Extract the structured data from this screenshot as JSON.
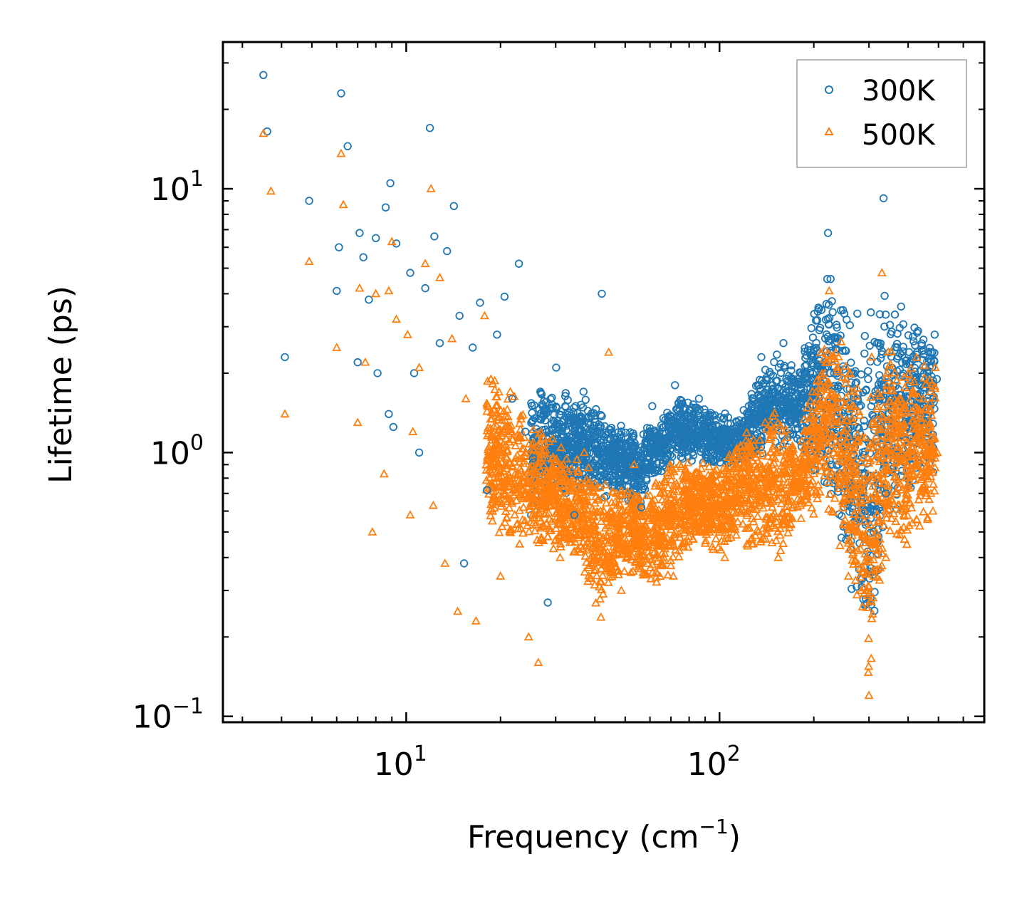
{
  "chart_data": {
    "type": "scatter",
    "xscale": "log",
    "yscale": "log",
    "xlim": [
      2.6,
      700
    ],
    "ylim": [
      0.095,
      36
    ],
    "xlabel": "Frequency (cm",
    "xlabel_sup": "−1",
    "xlabel_tail": ")",
    "ylabel": "Lifetime (ps)",
    "x_ticks": [
      {
        "value": 10,
        "base": "10",
        "exp": "1"
      },
      {
        "value": 100,
        "base": "10",
        "exp": "2"
      }
    ],
    "y_ticks": [
      {
        "value": 0.1,
        "base": "10",
        "exp": "−1"
      },
      {
        "value": 1,
        "base": "10",
        "exp": "0"
      },
      {
        "value": 10,
        "base": "10",
        "exp": "1"
      }
    ],
    "legend_position": "top-right",
    "series": [
      {
        "name": "300K",
        "marker": "circle",
        "color": "#1f77b4",
        "x": [
          3.5,
          3.6,
          4.1,
          4.9,
          6.0,
          6.1,
          6.2,
          6.5,
          7.0,
          7.1,
          7.3,
          7.6,
          8.0,
          8.1,
          8.6,
          8.8,
          8.9,
          9.1,
          9.3,
          10.3,
          10.6,
          11.0,
          11.5,
          11.9,
          12.3,
          12.8,
          13.5,
          14.2,
          14.8,
          15.3,
          16.3,
          17.2,
          18.1,
          19.5,
          20.6,
          21.8,
          22.9,
          24.0,
          25.4,
          26.8,
          28.3,
          30.1,
          32.2,
          34.4,
          36.8,
          39.5,
          42.1,
          45.0,
          48.3,
          52.1,
          56.3,
          61.0,
          66.2,
          72.1,
          78.7,
          86.0,
          94.2,
          103,
          113,
          124,
          136,
          148,
          160,
          172,
          222,
          225,
          228,
          292,
          298,
          304,
          310,
          322,
          334,
          340,
          478,
          486,
          494
        ],
        "y": [
          27,
          16.5,
          2.3,
          9,
          4.1,
          6,
          23,
          14.5,
          2.2,
          6.8,
          5.5,
          3.8,
          6.5,
          2.0,
          8.5,
          1.4,
          10.5,
          1.25,
          6.2,
          4.8,
          2.0,
          1.0,
          4.2,
          17,
          6.6,
          2.6,
          5.8,
          8.6,
          3.3,
          0.38,
          2.5,
          3.7,
          0.72,
          2.8,
          3.9,
          1.6,
          5.2,
          1.2,
          0.95,
          1.7,
          0.27,
          2.1,
          1.5,
          0.58,
          1.7,
          1.2,
          4.0,
          0.98,
          1.1,
          0.82,
          0.62,
          1.5,
          1.35,
          1.8,
          1.25,
          1.6,
          1.1,
          1.35,
          1.2,
          1.5,
          2.3,
          1.8,
          2.6,
          1.9,
          6.8,
          2.0,
          0.9,
          0.6,
          1.9,
          3.4,
          0.5,
          2.6,
          9.2,
          0.7,
          2.4,
          2.8,
          1.9
        ],
        "band": [
          {
            "x": 25,
            "low": 0.55,
            "high": 2.0
          },
          {
            "x": 35,
            "low": 0.7,
            "high": 1.7
          },
          {
            "x": 45,
            "low": 0.65,
            "high": 1.4
          },
          {
            "x": 55,
            "low": 0.6,
            "high": 1.2
          },
          {
            "x": 62,
            "low": 0.8,
            "high": 1.3
          },
          {
            "x": 75,
            "low": 0.9,
            "high": 1.7
          },
          {
            "x": 85,
            "low": 0.9,
            "high": 1.6
          },
          {
            "x": 100,
            "low": 0.85,
            "high": 1.4
          },
          {
            "x": 120,
            "low": 0.9,
            "high": 1.5
          },
          {
            "x": 140,
            "low": 1.0,
            "high": 2.2
          },
          {
            "x": 155,
            "low": 1.0,
            "high": 2.5
          },
          {
            "x": 175,
            "low": 1.0,
            "high": 2.1
          },
          {
            "x": 224,
            "low": 0.6,
            "high": 5.5
          },
          {
            "x": 300,
            "low": 0.15,
            "high": 3.0
          },
          {
            "x": 335,
            "low": 0.5,
            "high": 4.5
          },
          {
            "x": 486,
            "low": 0.8,
            "high": 2.8
          }
        ]
      },
      {
        "name": "500K",
        "marker": "triangle",
        "color": "#ff7f0e",
        "x": [
          3.5,
          3.7,
          4.1,
          4.9,
          6.0,
          6.2,
          6.3,
          7.0,
          7.1,
          7.4,
          7.8,
          8.0,
          8.5,
          8.8,
          9.0,
          9.3,
          10.1,
          10.3,
          10.5,
          11.0,
          11.5,
          12.0,
          12.2,
          12.8,
          13.3,
          14.0,
          14.6,
          15.5,
          16.7,
          17.8,
          18.8,
          20.0,
          21.5,
          23.0,
          24.6,
          26.4,
          28.6,
          31.0,
          33.8,
          37.0,
          40.4,
          44.3,
          48.6,
          53.4,
          58.8,
          64.7,
          71.2,
          78.4,
          86.3,
          94.9,
          104,
          115,
          127,
          140,
          154,
          170,
          224,
          228,
          296,
          300,
          306,
          316,
          330,
          340,
          480,
          488,
          496
        ],
        "y": [
          16.2,
          9.8,
          1.4,
          5.3,
          2.5,
          13.6,
          8.7,
          1.3,
          4.2,
          2.2,
          0.5,
          4.0,
          0.83,
          4.1,
          6.3,
          3.2,
          2.8,
          0.58,
          1.2,
          2.1,
          5.2,
          10,
          0.63,
          4.6,
          0.38,
          2.7,
          0.25,
          1.6,
          0.23,
          3.3,
          0.9,
          0.34,
          1.7,
          0.45,
          0.2,
          0.16,
          1.1,
          0.4,
          0.62,
          1.0,
          0.36,
          2.4,
          0.3,
          0.9,
          0.38,
          0.7,
          0.34,
          0.85,
          0.78,
          0.62,
          0.4,
          0.6,
          0.45,
          1.3,
          0.4,
          0.9,
          4.1,
          0.6,
          0.3,
          0.12,
          2.3,
          0.5,
          4.8,
          0.4,
          0.6,
          2.1,
          1.0
        ],
        "band": [
          {
            "x": 18,
            "low": 0.5,
            "high": 2.2
          },
          {
            "x": 25,
            "low": 0.4,
            "high": 1.4
          },
          {
            "x": 35,
            "low": 0.38,
            "high": 1.0
          },
          {
            "x": 42,
            "low": 0.22,
            "high": 0.8
          },
          {
            "x": 50,
            "low": 0.35,
            "high": 0.75
          },
          {
            "x": 58,
            "low": 0.32,
            "high": 0.7
          },
          {
            "x": 65,
            "low": 0.3,
            "high": 0.9
          },
          {
            "x": 75,
            "low": 0.4,
            "high": 1.0
          },
          {
            "x": 85,
            "low": 0.45,
            "high": 0.95
          },
          {
            "x": 100,
            "low": 0.4,
            "high": 0.95
          },
          {
            "x": 115,
            "low": 0.45,
            "high": 1.2
          },
          {
            "x": 140,
            "low": 0.4,
            "high": 1.4
          },
          {
            "x": 160,
            "low": 0.4,
            "high": 1.5
          },
          {
            "x": 175,
            "low": 0.55,
            "high": 1.1
          },
          {
            "x": 226,
            "low": 0.55,
            "high": 3.8
          },
          {
            "x": 300,
            "low": 0.12,
            "high": 1.6
          },
          {
            "x": 335,
            "low": 0.35,
            "high": 3.0
          },
          {
            "x": 488,
            "low": 0.55,
            "high": 2.0
          }
        ]
      }
    ]
  }
}
